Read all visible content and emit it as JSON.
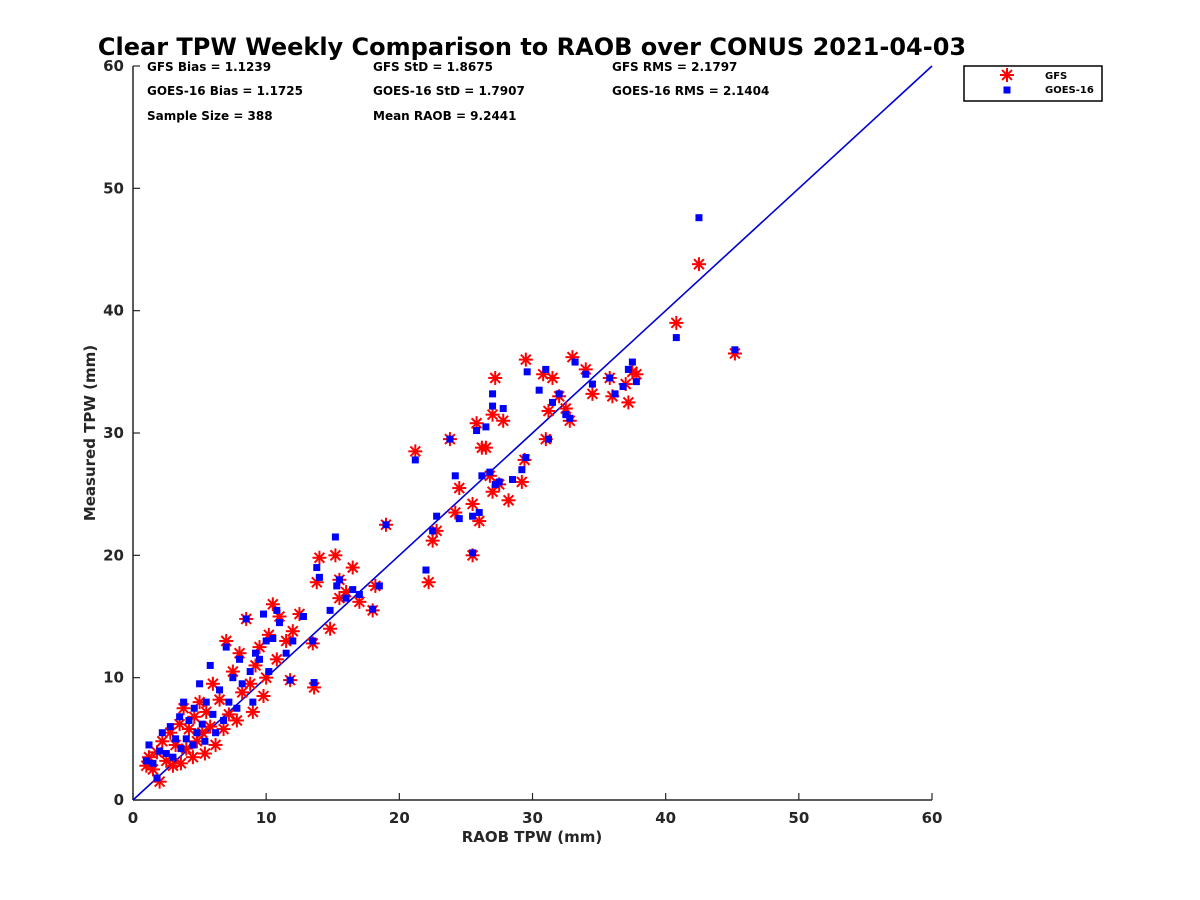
{
  "chart_data": {
    "type": "scatter",
    "title": "Clear TPW Weekly Comparison to RAOB over CONUS 2021-04-03",
    "xlabel": "RAOB TPW (mm)",
    "ylabel": "Measured TPW (mm)",
    "xlim": [
      0,
      60
    ],
    "ylim": [
      0,
      60
    ],
    "xticks": [
      0,
      10,
      20,
      30,
      40,
      50,
      60
    ],
    "yticks": [
      0,
      10,
      20,
      30,
      40,
      50,
      60
    ],
    "grid": false,
    "legend_position": "top-right, outside plot",
    "reference_line": {
      "x": [
        0,
        60
      ],
      "y": [
        0,
        60
      ],
      "color": "#0000d6"
    },
    "stats": {
      "gfs_bias": "GFS Bias = 1.1239",
      "goes_bias": "GOES-16 Bias = 1.1725",
      "sample_size": "Sample Size = 388",
      "gfs_std": "GFS StD = 1.8675",
      "goes_std": "GOES-16 StD = 1.7907",
      "mean_raob": "Mean RAOB = 9.2441",
      "gfs_rms": "GFS RMS = 2.1797",
      "goes_rms": "GOES-16 RMS = 2.1404"
    },
    "series": [
      {
        "name": "GFS",
        "marker": "asterisk",
        "color": "#ff0000",
        "points": [
          [
            1.0,
            2.8
          ],
          [
            1.2,
            3.5
          ],
          [
            1.5,
            2.5
          ],
          [
            1.8,
            3.9
          ],
          [
            2.0,
            1.5
          ],
          [
            2.2,
            4.8
          ],
          [
            2.5,
            3.2
          ],
          [
            2.8,
            5.5
          ],
          [
            3.0,
            2.8
          ],
          [
            3.2,
            4.5
          ],
          [
            3.5,
            6.2
          ],
          [
            3.6,
            3.0
          ],
          [
            3.8,
            7.5
          ],
          [
            4.0,
            4.2
          ],
          [
            4.2,
            5.8
          ],
          [
            4.5,
            3.5
          ],
          [
            4.6,
            6.8
          ],
          [
            4.8,
            4.8
          ],
          [
            5.0,
            8.0
          ],
          [
            5.2,
            5.5
          ],
          [
            5.4,
            3.8
          ],
          [
            5.5,
            7.2
          ],
          [
            5.8,
            6.0
          ],
          [
            6.0,
            9.5
          ],
          [
            6.2,
            4.5
          ],
          [
            6.5,
            8.2
          ],
          [
            6.8,
            5.8
          ],
          [
            7.0,
            13.0
          ],
          [
            7.2,
            7.0
          ],
          [
            7.5,
            10.5
          ],
          [
            7.8,
            6.5
          ],
          [
            8.0,
            12.0
          ],
          [
            8.2,
            8.8
          ],
          [
            8.5,
            14.8
          ],
          [
            8.8,
            9.5
          ],
          [
            9.0,
            7.2
          ],
          [
            9.2,
            11.0
          ],
          [
            9.5,
            12.5
          ],
          [
            9.8,
            8.5
          ],
          [
            10.0,
            10.0
          ],
          [
            10.2,
            13.5
          ],
          [
            10.5,
            16.0
          ],
          [
            10.8,
            11.5
          ],
          [
            11.0,
            15.0
          ],
          [
            11.5,
            13.0
          ],
          [
            11.8,
            9.8
          ],
          [
            12.0,
            13.8
          ],
          [
            12.5,
            15.2
          ],
          [
            13.5,
            12.8
          ],
          [
            13.6,
            9.2
          ],
          [
            13.8,
            17.8
          ],
          [
            14.0,
            19.8
          ],
          [
            14.8,
            14.0
          ],
          [
            15.2,
            20.0
          ],
          [
            15.5,
            18.0
          ],
          [
            15.5,
            16.5
          ],
          [
            16.0,
            17.0
          ],
          [
            16.5,
            19.0
          ],
          [
            17.0,
            16.2
          ],
          [
            18.0,
            15.5
          ],
          [
            18.2,
            17.5
          ],
          [
            19.0,
            22.5
          ],
          [
            21.2,
            28.5
          ],
          [
            22.2,
            17.8
          ],
          [
            22.5,
            21.2
          ],
          [
            22.8,
            22.0
          ],
          [
            23.8,
            29.5
          ],
          [
            24.2,
            23.5
          ],
          [
            24.5,
            25.5
          ],
          [
            25.5,
            20.0
          ],
          [
            25.5,
            24.2
          ],
          [
            25.8,
            30.8
          ],
          [
            26.0,
            22.8
          ],
          [
            26.2,
            28.8
          ],
          [
            26.5,
            28.8
          ],
          [
            26.8,
            26.5
          ],
          [
            27.0,
            25.2
          ],
          [
            27.0,
            31.5
          ],
          [
            27.2,
            34.5
          ],
          [
            27.5,
            25.8
          ],
          [
            27.8,
            31.0
          ],
          [
            28.2,
            24.5
          ],
          [
            29.2,
            26.0
          ],
          [
            29.4,
            27.8
          ],
          [
            29.5,
            36.0
          ],
          [
            30.8,
            34.8
          ],
          [
            31.0,
            29.5
          ],
          [
            31.2,
            31.8
          ],
          [
            31.5,
            34.5
          ],
          [
            32.0,
            33.0
          ],
          [
            32.5,
            32.0
          ],
          [
            32.8,
            31.0
          ],
          [
            33.0,
            36.2
          ],
          [
            34.0,
            35.2
          ],
          [
            34.5,
            33.2
          ],
          [
            35.8,
            34.5
          ],
          [
            36.0,
            33.0
          ],
          [
            37.0,
            34.0
          ],
          [
            37.2,
            32.5
          ],
          [
            37.5,
            35.0
          ],
          [
            37.8,
            34.8
          ],
          [
            40.8,
            39.0
          ],
          [
            42.5,
            43.8
          ],
          [
            45.2,
            36.5
          ]
        ]
      },
      {
        "name": "GOES-16",
        "marker": "square",
        "color": "#0000ff",
        "points": [
          [
            1.0,
            3.2
          ],
          [
            1.2,
            4.5
          ],
          [
            1.5,
            3.0
          ],
          [
            1.8,
            1.8
          ],
          [
            2.0,
            4.0
          ],
          [
            2.2,
            5.5
          ],
          [
            2.5,
            3.8
          ],
          [
            2.8,
            6.0
          ],
          [
            3.0,
            3.5
          ],
          [
            3.2,
            5.0
          ],
          [
            3.5,
            6.8
          ],
          [
            3.6,
            4.2
          ],
          [
            3.8,
            8.0
          ],
          [
            4.0,
            5.0
          ],
          [
            4.2,
            6.5
          ],
          [
            4.5,
            4.5
          ],
          [
            4.6,
            7.5
          ],
          [
            4.8,
            5.5
          ],
          [
            5.0,
            9.5
          ],
          [
            5.2,
            6.2
          ],
          [
            5.4,
            4.8
          ],
          [
            5.5,
            8.0
          ],
          [
            5.8,
            11.0
          ],
          [
            6.0,
            7.0
          ],
          [
            6.2,
            5.5
          ],
          [
            6.5,
            9.0
          ],
          [
            6.8,
            6.5
          ],
          [
            7.0,
            12.5
          ],
          [
            7.2,
            8.0
          ],
          [
            7.5,
            10.0
          ],
          [
            7.8,
            7.5
          ],
          [
            8.0,
            11.5
          ],
          [
            8.2,
            9.5
          ],
          [
            8.5,
            14.8
          ],
          [
            8.8,
            10.5
          ],
          [
            9.0,
            8.0
          ],
          [
            9.2,
            12.0
          ],
          [
            9.5,
            11.5
          ],
          [
            9.8,
            15.2
          ],
          [
            10.0,
            13.0
          ],
          [
            10.2,
            10.5
          ],
          [
            10.5,
            13.2
          ],
          [
            10.8,
            15.5
          ],
          [
            11.0,
            14.5
          ],
          [
            11.5,
            12.0
          ],
          [
            11.8,
            9.8
          ],
          [
            12.0,
            13.0
          ],
          [
            12.8,
            15.0
          ],
          [
            13.5,
            13.0
          ],
          [
            13.6,
            9.6
          ],
          [
            13.8,
            19.0
          ],
          [
            14.0,
            18.2
          ],
          [
            14.8,
            15.5
          ],
          [
            15.2,
            21.5
          ],
          [
            15.3,
            17.5
          ],
          [
            15.5,
            18.0
          ],
          [
            16.0,
            16.5
          ],
          [
            16.5,
            17.2
          ],
          [
            17.0,
            16.8
          ],
          [
            18.0,
            15.6
          ],
          [
            18.5,
            17.5
          ],
          [
            19.0,
            22.5
          ],
          [
            21.2,
            27.8
          ],
          [
            22.0,
            18.8
          ],
          [
            22.5,
            22.0
          ],
          [
            22.8,
            23.2
          ],
          [
            23.8,
            29.5
          ],
          [
            24.2,
            26.5
          ],
          [
            24.5,
            23.0
          ],
          [
            25.5,
            20.2
          ],
          [
            25.5,
            23.2
          ],
          [
            25.8,
            30.2
          ],
          [
            26.0,
            23.5
          ],
          [
            26.2,
            26.5
          ],
          [
            26.5,
            30.5
          ],
          [
            26.8,
            26.8
          ],
          [
            27.0,
            32.2
          ],
          [
            27.0,
            33.2
          ],
          [
            27.2,
            25.8
          ],
          [
            27.5,
            26.0
          ],
          [
            27.8,
            32.0
          ],
          [
            28.5,
            26.2
          ],
          [
            29.2,
            27.0
          ],
          [
            29.5,
            28.0
          ],
          [
            29.6,
            35.0
          ],
          [
            30.5,
            33.5
          ],
          [
            31.0,
            35.2
          ],
          [
            31.2,
            29.5
          ],
          [
            31.5,
            32.5
          ],
          [
            32.0,
            33.2
          ],
          [
            32.5,
            31.5
          ],
          [
            32.8,
            31.2
          ],
          [
            33.2,
            35.8
          ],
          [
            34.0,
            34.8
          ],
          [
            34.5,
            34.0
          ],
          [
            35.8,
            34.5
          ],
          [
            36.2,
            33.2
          ],
          [
            36.8,
            33.8
          ],
          [
            37.2,
            35.2
          ],
          [
            37.5,
            35.8
          ],
          [
            37.8,
            34.2
          ],
          [
            40.8,
            37.8
          ],
          [
            42.5,
            47.6
          ],
          [
            45.2,
            36.8
          ]
        ]
      }
    ]
  }
}
